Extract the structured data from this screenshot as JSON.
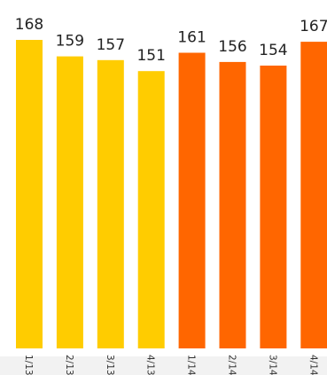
{
  "chart_data": {
    "type": "bar",
    "title": "",
    "xlabel": "",
    "ylabel": "",
    "categories": [
      "1/13",
      "2/13",
      "3/13",
      "4/13",
      "1/14",
      "2/14",
      "3/14",
      "4/14"
    ],
    "values": [
      168,
      159,
      157,
      151,
      161,
      156,
      154,
      167
    ],
    "colors": [
      "#FFCC00",
      "#FFCC00",
      "#FFCC00",
      "#FFCC00",
      "#FF6600",
      "#FF6600",
      "#FF6600",
      "#FF6600"
    ],
    "ylim": [
      0,
      168
    ],
    "grid": false,
    "legend": "none"
  }
}
